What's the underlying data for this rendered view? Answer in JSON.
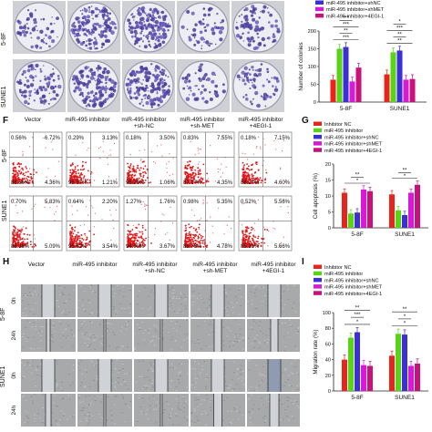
{
  "colony": {
    "row_labels": [
      "5-8F",
      "SUNE1"
    ]
  },
  "flow": {
    "panel": "F",
    "col_headers": [
      "Vector",
      "miR-495 inhibitor",
      "miR-495 inhibitor\n+sh-NC",
      "miR-495 inhibitor\n+sh-MET",
      "miR-495 inhibitor\n+4EGI-1"
    ],
    "row_labels": [
      "5-8F",
      "SUNE1"
    ],
    "quadrants": [
      [
        [
          "0.56%",
          "6.72%",
          "88.36%",
          "4.36%"
        ],
        [
          "0.29%",
          "3.13%",
          "95.37%",
          "1.21%"
        ],
        [
          "0.18%",
          "3.50%",
          "95.26%",
          "1.06%"
        ],
        [
          "0.83%",
          "7.55%",
          "87.27%",
          "4.35%"
        ],
        [
          "0.18%",
          "7.15%",
          "88.27%",
          "4.60%"
        ]
      ],
      [
        [
          "0.70%",
          "5.83%",
          "88.38%",
          "5.09%"
        ],
        [
          "0.64%",
          "2.20%",
          "95.62%",
          "3.54%"
        ],
        [
          "1.27%",
          "1.76%",
          "94.90%",
          "3.67%"
        ],
        [
          "0.98%",
          "5.35%",
          "86.79%",
          "4.78%"
        ],
        [
          "0.52%",
          "5.56%",
          "85.31%",
          "5.66%"
        ]
      ]
    ]
  },
  "wound": {
    "panel": "H",
    "col_headers": [
      "Vector",
      "miR-495 inhibitor",
      "miR-495 inhibitor\n+sh-NC",
      "miR-495 inhibitor\n+sh-MET",
      "miR-495 inhibitor\n+4EGI-1"
    ],
    "time_labels": [
      "0h",
      "24h",
      "0h",
      "24h"
    ],
    "line_labels": [
      "5-8F",
      "SUNE1"
    ]
  },
  "colors": {
    "inhibitor_nc": "#e8241c",
    "mir495_inhibitor": "#59d316",
    "inhibitor_shnc": "#3b2fd8",
    "inhibitor_shmet": "#d61ad6",
    "inhibitor_4egi1": "#c8117a"
  },
  "chart_data": [
    {
      "type": "bar",
      "panel": "",
      "legend": [
        "miR-495 inhibitor+shNC",
        "miR-495 inhibitor+shMET",
        "miR-495 inhibitor+4EGI-1"
      ],
      "categories": [
        "5-8F",
        "SUNE1"
      ],
      "ylabel": "Number of colonies",
      "ylim": [
        0,
        200
      ],
      "yticks": [
        "0",
        "50",
        "100",
        "150",
        "200"
      ],
      "series": [
        {
          "name": "",
          "values": [
            63,
            78
          ]
        },
        {
          "name": "",
          "values": [
            150,
            140
          ]
        },
        {
          "name": "",
          "values": [
            155,
            145
          ]
        },
        {
          "name": "miR-495 inhibitor+shNC",
          "values": [
            58,
            63
          ]
        },
        {
          "name": "miR-495 inhibitor+shMET",
          "values": [
            97,
            65
          ]
        }
      ],
      "annotations": [
        "***",
        "**",
        "***",
        "***",
        "**",
        "**",
        "***",
        "*"
      ]
    },
    {
      "type": "bar",
      "panel": "G",
      "legend": [
        "Inhibitor NC",
        "miR-495 inhibitor",
        "miR-495 inhibitor+shNC",
        "miR-495 inhibitor+shMET",
        "miR-495 inhibitor+4EGI-1"
      ],
      "categories": [
        "5-8F",
        "SUNE1"
      ],
      "ylabel": "Cell apoptosis (%)",
      "ylim": [
        0,
        20
      ],
      "yticks": [
        "0",
        "5",
        "10",
        "15",
        "20"
      ],
      "series": [
        {
          "name": "Inhibitor NC",
          "values": [
            11,
            10.5
          ]
        },
        {
          "name": "miR-495 inhibitor",
          "values": [
            4.5,
            5.5
          ]
        },
        {
          "name": "miR-495 inhibitor+shNC",
          "values": [
            4.8,
            4.0
          ]
        },
        {
          "name": "miR-495 inhibitor+shMET",
          "values": [
            12,
            11
          ]
        },
        {
          "name": "miR-495 inhibitor+4EGI-1",
          "values": [
            11.5,
            13.5
          ]
        }
      ],
      "annotations": [
        "*",
        "**",
        "*",
        "**"
      ]
    },
    {
      "type": "bar",
      "panel": "I",
      "legend": [
        "Inhibitor NC",
        "miR-495 inhibitor",
        "miR-495 inhibitor+shNC",
        "miR-495 inhibitor+shMET",
        "miR-495 inhibitor+4EGI-1"
      ],
      "categories": [
        "5-8F",
        "SUNE1"
      ],
      "ylabel": "Migration rate (%)",
      "ylim": [
        0,
        100
      ],
      "yticks": [
        "0",
        "20",
        "40",
        "60",
        "80",
        "100"
      ],
      "series": [
        {
          "name": "Inhibitor NC",
          "values": [
            40,
            45
          ]
        },
        {
          "name": "miR-495 inhibitor",
          "values": [
            68,
            73
          ]
        },
        {
          "name": "miR-495 inhibitor+shNC",
          "values": [
            75,
            72
          ]
        },
        {
          "name": "miR-495 inhibitor+shMET",
          "values": [
            33,
            32
          ]
        },
        {
          "name": "miR-495 inhibitor+4EGI-1",
          "values": [
            32,
            35
          ]
        }
      ],
      "annotations": [
        "*",
        "***",
        "**",
        "*",
        "*",
        "**"
      ]
    }
  ]
}
